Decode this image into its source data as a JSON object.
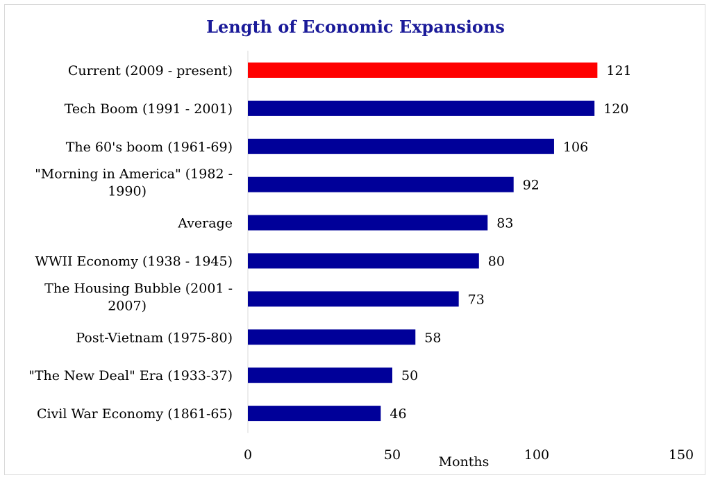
{
  "chart_data": {
    "type": "bar",
    "orientation": "horizontal",
    "title": "Length of Economic Expansions",
    "xlabel": "Months",
    "ylabel": "",
    "xlim": [
      0,
      150
    ],
    "ticks": [
      0,
      50,
      100,
      150
    ],
    "grid": false,
    "legend": "none",
    "colors": {
      "highlight": "#ff0000",
      "default": "#000099",
      "title": "#1a1a99"
    },
    "bars": [
      {
        "label": "Current (2009 - present)",
        "value": 121,
        "highlight": true
      },
      {
        "label": "Tech Boom (1991 - 2001)",
        "value": 120,
        "highlight": false
      },
      {
        "label": "The 60's boom (1961-69)",
        "value": 106,
        "highlight": false
      },
      {
        "label": "\"Morning in America\" (1982 - 1990)",
        "lines": [
          "\"Morning in America\" (1982 -",
          "1990)"
        ],
        "value": 92,
        "highlight": false
      },
      {
        "label": "Average",
        "value": 83,
        "highlight": false
      },
      {
        "label": "WWII Economy (1938 - 1945)",
        "value": 80,
        "highlight": false
      },
      {
        "label": "The Housing Bubble (2001 - 2007)",
        "lines": [
          "The Housing Bubble (2001 -",
          "2007)"
        ],
        "value": 73,
        "highlight": false
      },
      {
        "label": "Post-Vietnam (1975-80)",
        "value": 58,
        "highlight": false
      },
      {
        "label": "\"The New Deal\" Era (1933-37)",
        "value": 50,
        "highlight": false
      },
      {
        "label": "Civil War Economy (1861-65)",
        "value": 46,
        "highlight": false
      }
    ]
  }
}
